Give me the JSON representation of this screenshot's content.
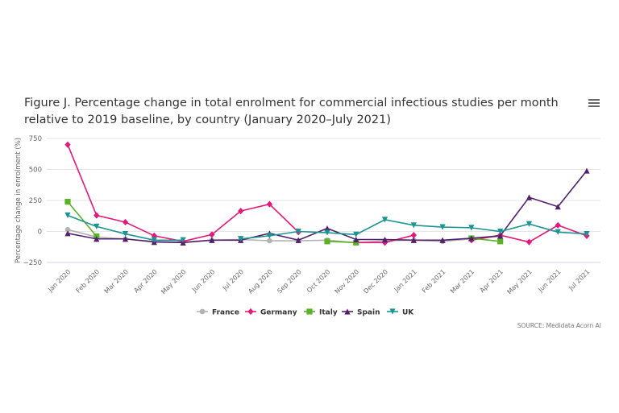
{
  "chart_data": {
    "type": "line",
    "title": "Figure J. Percentage change in total enrolment for commercial infectious studies per month relative to 2019 baseline, by country (January 2020–July 2021)",
    "xlabel": "",
    "ylabel": "Percentage change in enrolment (%)",
    "ylim": [
      -250,
      750
    ],
    "yticks": [
      "750",
      "500",
      "250",
      "0",
      "−250"
    ],
    "ytick_values": [
      750,
      500,
      250,
      0,
      -250
    ],
    "grid": true,
    "legend": "bottom",
    "categories": [
      "Jan 2020",
      "Feb 2020",
      "Mar 2020",
      "Apr 2020",
      "May 2020",
      "Jun 2020",
      "Jul 2020",
      "Aug 2020",
      "Sep 2020",
      "Oct 2020",
      "Nov 2020",
      "Dec 2020",
      "Jan 2021",
      "Feb 2021",
      "Mar 2021",
      "Apr 2021",
      "May 2021",
      "Jun 2021",
      "Jul 2021"
    ],
    "series": [
      {
        "name": "France",
        "color": "#b3b3b3",
        "marker": "circle",
        "values": [
          15,
          -45,
          -60,
          -80,
          -85,
          -70,
          -65,
          -75,
          -75,
          -70,
          -90,
          -75,
          -70,
          -80,
          -60,
          -40,
          null,
          null,
          null
        ]
      },
      {
        "name": "Germany",
        "color": "#e6177a",
        "marker": "diamond",
        "values": [
          700,
          130,
          75,
          -35,
          -80,
          -25,
          165,
          220,
          -5,
          null,
          -90,
          -90,
          -30,
          null,
          -70,
          -30,
          -85,
          50,
          -35
        ]
      },
      {
        "name": "Italy",
        "color": "#5bb226",
        "marker": "square",
        "values": [
          240,
          -40,
          null,
          null,
          null,
          null,
          null,
          null,
          null,
          -80,
          -90,
          null,
          null,
          null,
          -55,
          -80,
          null,
          null,
          null
        ]
      },
      {
        "name": "Spain",
        "color": "#53206e",
        "marker": "triangle",
        "values": [
          -15,
          -60,
          -60,
          -85,
          -90,
          -70,
          -70,
          -15,
          -70,
          25,
          -65,
          -65,
          -70,
          -70,
          -55,
          -35,
          275,
          200,
          490
        ]
      },
      {
        "name": "UK",
        "color": "#1a9593",
        "marker": "triangle-down",
        "values": [
          130,
          40,
          -20,
          -70,
          -70,
          null,
          -60,
          -35,
          0,
          -10,
          -25,
          95,
          50,
          35,
          30,
          0,
          60,
          -5,
          -20
        ]
      }
    ],
    "source": "SOURCE: Medidata Acorn AI"
  },
  "menu_icon": "hamburger-menu-icon"
}
